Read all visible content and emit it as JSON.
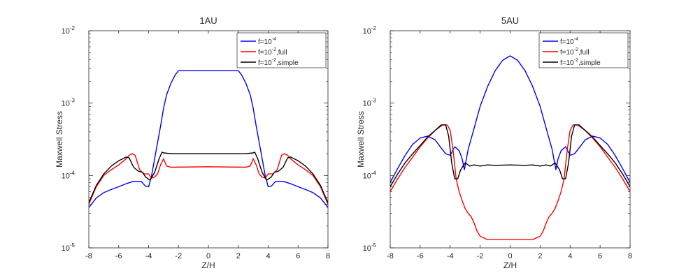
{
  "figure": {
    "panels": [
      "panel_1au",
      "panel_5au"
    ]
  },
  "chart_data": [
    {
      "type": "line",
      "title": "1AU",
      "xlabel": "Z/H",
      "ylabel": "Maxwell Stress",
      "xlim": [
        -8,
        8
      ],
      "ylim": [
        1e-05,
        0.01
      ],
      "yscale": "log",
      "xticks": [
        -8,
        -6,
        -4,
        -2,
        0,
        2,
        4,
        6,
        8
      ],
      "yticks": [
        {
          "value": 1e-05,
          "base": "10",
          "exp": "-5"
        },
        {
          "value": 0.0001,
          "base": "10",
          "exp": "-4"
        },
        {
          "value": 0.001,
          "base": "10",
          "exp": "-3"
        },
        {
          "value": 0.01,
          "base": "10",
          "exp": "-2"
        }
      ],
      "grid": false,
      "legend_position": "top-right",
      "series": [
        {
          "name": "f=10^-4",
          "legend": {
            "base": "f=10",
            "exp": "-4",
            "suffix": ""
          },
          "color": "#0000ff",
          "x": [
            -8,
            -7.5,
            -7,
            -6.5,
            -6,
            -5.5,
            -5,
            -4.5,
            -4.2,
            -4,
            -3.8,
            -3.5,
            -3.2,
            -3,
            -2.8,
            -2.5,
            -2.2,
            -2,
            0,
            2,
            2.2,
            2.5,
            2.8,
            3,
            3.2,
            3.5,
            3.8,
            4,
            4.2,
            4.5,
            5,
            5.5,
            6,
            6.5,
            7,
            7.5,
            8
          ],
          "y": [
            3.6e-05,
            4.9e-05,
            5.8e-05,
            6.4e-05,
            7e-05,
            7.7e-05,
            8.3e-05,
            8.3e-05,
            7.1e-05,
            7e-05,
            0.0001,
            0.00022,
            0.00048,
            0.00085,
            0.0013,
            0.0019,
            0.0025,
            0.0028,
            0.0028,
            0.0028,
            0.0025,
            0.0019,
            0.0013,
            0.00085,
            0.00048,
            0.00022,
            0.0001,
            7e-05,
            7.1e-05,
            8.3e-05,
            8.3e-05,
            7.7e-05,
            7e-05,
            6.4e-05,
            5.8e-05,
            4.9e-05,
            3.6e-05
          ]
        },
        {
          "name": "f=10^-2,full",
          "legend": {
            "base": "f=10",
            "exp": "-2",
            "suffix": ",full"
          },
          "color": "#ff0000",
          "x": [
            -8,
            -7.5,
            -7,
            -6.5,
            -6,
            -5.5,
            -5.3,
            -5.1,
            -4.9,
            -4.6,
            -4.3,
            -4,
            -3.8,
            -3.6,
            -3.4,
            -3.2,
            -3,
            -2.8,
            -2.5,
            0,
            2.5,
            2.8,
            3,
            3.2,
            3.4,
            3.6,
            3.8,
            4,
            4.3,
            4.6,
            4.9,
            5.1,
            5.3,
            5.5,
            6,
            6.5,
            7,
            7.5,
            8
          ],
          "y": [
            4e-05,
            7e-05,
            0.0001,
            0.00012,
            0.00014,
            0.00017,
            0.00019,
            0.0002,
            0.00019,
            0.00012,
            0.000105,
            0.000105,
            9.2e-05,
            9.5e-05,
            0.000105,
            0.00014,
            0.00017,
            0.000135,
            0.00013,
            0.000132,
            0.00013,
            0.000135,
            0.00017,
            0.00014,
            0.000105,
            9.5e-05,
            9.2e-05,
            0.000105,
            0.000105,
            0.00012,
            0.00019,
            0.0002,
            0.00019,
            0.00017,
            0.00014,
            0.00012,
            0.0001,
            7e-05,
            4e-05
          ]
        },
        {
          "name": "f=10^-2,simple",
          "legend": {
            "base": "f=10",
            "exp": "-2",
            "suffix": ",simple"
          },
          "color": "#000000",
          "x": [
            -8,
            -7.5,
            -7,
            -6.5,
            -6,
            -5.5,
            -5.3,
            -5,
            -4.7,
            -4.4,
            -4.2,
            -3.9,
            -3.6,
            -3.3,
            -3.1,
            -3,
            -2.5,
            0,
            2.5,
            3,
            3.1,
            3.3,
            3.6,
            3.9,
            4.2,
            4.4,
            4.7,
            5,
            5.3,
            5.5,
            6,
            6.5,
            7,
            7.5,
            8
          ],
          "y": [
            4.2e-05,
            7.3e-05,
            0.000105,
            0.000135,
            0.00016,
            0.00018,
            0.000175,
            0.00013,
            0.000115,
            0.00011,
            9.5e-05,
            8.6e-05,
            0.00011,
            0.00017,
            0.00021,
            0.000205,
            0.0002,
            0.0002,
            0.0002,
            0.000205,
            0.00021,
            0.00017,
            0.00011,
            8.6e-05,
            9.5e-05,
            0.00011,
            0.000115,
            0.00013,
            0.000175,
            0.00018,
            0.00016,
            0.000135,
            0.000105,
            7.3e-05,
            4.2e-05
          ]
        }
      ]
    },
    {
      "type": "line",
      "title": "5AU",
      "xlabel": "Z/H",
      "ylabel": "Maxwell Stress",
      "xlim": [
        -8,
        8
      ],
      "ylim": [
        1e-05,
        0.01
      ],
      "yscale": "log",
      "xticks": [
        -8,
        -6,
        -4,
        -2,
        0,
        2,
        4,
        6,
        8
      ],
      "yticks": [
        {
          "value": 1e-05,
          "base": "10",
          "exp": "-5"
        },
        {
          "value": 0.0001,
          "base": "10",
          "exp": "-4"
        },
        {
          "value": 0.001,
          "base": "10",
          "exp": "-3"
        },
        {
          "value": 0.01,
          "base": "10",
          "exp": "-2"
        }
      ],
      "grid": false,
      "legend_position": "top-right",
      "series": [
        {
          "name": "f=10^-4",
          "legend": {
            "base": "f=10",
            "exp": "-4",
            "suffix": ""
          },
          "color": "#0000ff",
          "x": [
            -8,
            -7.5,
            -7,
            -6.5,
            -6,
            -5.5,
            -5,
            -4.6,
            -4.3,
            -4,
            -3.7,
            -3.4,
            -3.2,
            -3.05,
            -2.8,
            -2.4,
            -2,
            -1.5,
            -1,
            -0.5,
            0,
            0.5,
            1,
            1.5,
            2,
            2.4,
            2.8,
            3.05,
            3.2,
            3.4,
            3.7,
            4,
            4.3,
            4.6,
            5,
            5.5,
            6,
            6.5,
            7,
            7.5,
            8
          ],
          "y": [
            8e-05,
            0.000125,
            0.00019,
            0.00027,
            0.00033,
            0.00035,
            0.00031,
            0.00024,
            0.0002,
            0.00019,
            0.00025,
            0.00022,
            0.00017,
            0.00012,
            0.00023,
            0.00045,
            0.0009,
            0.0017,
            0.0028,
            0.0039,
            0.0045,
            0.0039,
            0.0028,
            0.0017,
            0.0009,
            0.00045,
            0.00023,
            0.00012,
            0.00017,
            0.00022,
            0.00025,
            0.00019,
            0.0002,
            0.00024,
            0.00031,
            0.00035,
            0.00033,
            0.00027,
            0.00019,
            0.000125,
            8e-05
          ]
        },
        {
          "name": "f=10^-2,full",
          "legend": {
            "base": "f=10",
            "exp": "-2",
            "suffix": ",full"
          },
          "color": "#ff0000",
          "x": [
            -8,
            -7.5,
            -7,
            -6.5,
            -6,
            -5.5,
            -5,
            -4.5,
            -4.2,
            -4,
            -3.8,
            -3.6,
            -3.4,
            -3.2,
            -3,
            -2.8,
            -2.6,
            -2.4,
            -2.2,
            -2,
            -1.5,
            0,
            1.5,
            2,
            2.2,
            2.4,
            2.6,
            2.8,
            3,
            3.2,
            3.4,
            3.6,
            3.8,
            4,
            4.2,
            4.5,
            5,
            5.5,
            6,
            6.5,
            7,
            7.5,
            8
          ],
          "y": [
            6e-05,
            9e-05,
            0.00013,
            0.00018,
            0.00025,
            0.00033,
            0.00042,
            0.0005,
            0.0005,
            0.00042,
            0.00022,
            9e-05,
            6e-05,
            4.5e-05,
            3.5e-05,
            3e-05,
            2.7e-05,
            2.2e-05,
            1.7e-05,
            1.45e-05,
            1.3e-05,
            1.3e-05,
            1.3e-05,
            1.45e-05,
            1.7e-05,
            2.2e-05,
            2.7e-05,
            3e-05,
            3.5e-05,
            4.5e-05,
            6e-05,
            9e-05,
            0.00022,
            0.00042,
            0.0005,
            0.0005,
            0.00042,
            0.00033,
            0.00025,
            0.00018,
            0.00013,
            9e-05,
            6e-05
          ]
        },
        {
          "name": "f=10^-2,simple",
          "legend": {
            "base": "f=10",
            "exp": "-2",
            "suffix": ",simple"
          },
          "color": "#000000",
          "x": [
            -8,
            -7.5,
            -7,
            -6.5,
            -6,
            -5.5,
            -5,
            -4.6,
            -4.3,
            -4.1,
            -3.9,
            -3.7,
            -3.5,
            -3.3,
            -3,
            -2.7,
            -2.4,
            -2,
            -1.5,
            -1,
            0,
            1,
            1.5,
            2,
            2.4,
            2.7,
            3,
            3.3,
            3.5,
            3.7,
            3.9,
            4.1,
            4.3,
            4.6,
            5,
            5.5,
            6,
            6.5,
            7,
            7.5,
            8
          ],
          "y": [
            7e-05,
            0.000105,
            0.00015,
            0.0002,
            0.00026,
            0.00034,
            0.00042,
            0.0005,
            0.0005,
            0.00035,
            0.00015,
            9e-05,
            9e-05,
            0.00012,
            0.00015,
            0.000135,
            0.00014,
            0.000135,
            0.00014,
            0.000138,
            0.00014,
            0.000138,
            0.00014,
            0.000135,
            0.00014,
            0.000135,
            0.00015,
            0.00012,
            9e-05,
            9e-05,
            0.00015,
            0.00035,
            0.0005,
            0.0005,
            0.00042,
            0.00034,
            0.00026,
            0.0002,
            0.00015,
            0.000105,
            7e-05
          ]
        }
      ]
    }
  ]
}
